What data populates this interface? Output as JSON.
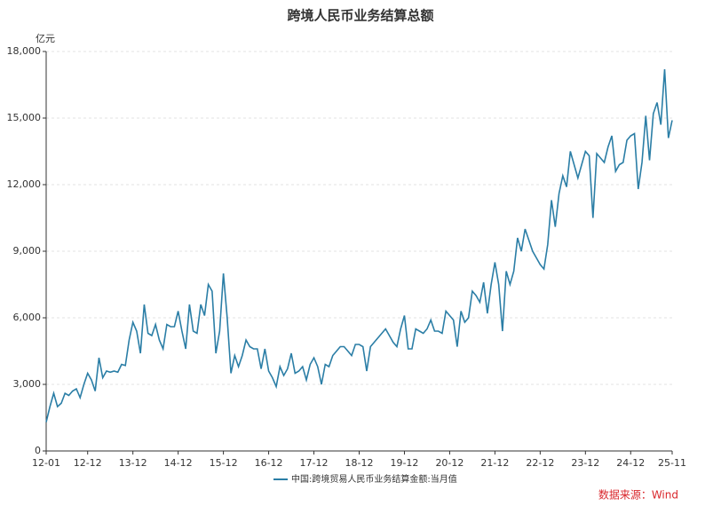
{
  "chart_data": {
    "type": "line",
    "title": "跨境人民币业务结算总额",
    "y_unit": "亿元",
    "source": "数据来源：Wind",
    "categories": [
      "12-01",
      null,
      null,
      null,
      null,
      null,
      null,
      null,
      null,
      null,
      null,
      "12-12",
      null,
      null,
      null,
      null,
      null,
      null,
      null,
      null,
      null,
      null,
      null,
      "13-12",
      null,
      null,
      null,
      null,
      null,
      null,
      null,
      null,
      null,
      null,
      null,
      "14-12",
      null,
      null,
      null,
      null,
      null,
      null,
      null,
      null,
      null,
      null,
      null,
      "15-12",
      null,
      null,
      null,
      null,
      null,
      null,
      null,
      null,
      null,
      null,
      null,
      "16-12",
      null,
      null,
      null,
      null,
      null,
      null,
      null,
      null,
      null,
      null,
      null,
      "17-12",
      null,
      null,
      null,
      null,
      null,
      null,
      null,
      null,
      null,
      null,
      null,
      "18-12",
      null,
      null,
      null,
      null,
      null,
      null,
      null,
      null,
      null,
      null,
      null,
      "19-12",
      null,
      null,
      null,
      null,
      null,
      null,
      null,
      null,
      null,
      null,
      null,
      "20-12",
      null,
      null,
      null,
      null,
      null,
      null,
      null,
      null,
      null,
      null,
      null,
      "21-12",
      null,
      null,
      null,
      null,
      null,
      null,
      null,
      null,
      null,
      null,
      null,
      "22-12",
      null,
      null,
      null,
      null,
      null,
      null,
      null,
      null,
      null,
      null,
      null,
      "23-12",
      null,
      null,
      null,
      null,
      null,
      null,
      null,
      null,
      null,
      null,
      null,
      "24-12",
      null,
      null,
      null,
      null,
      null,
      null,
      null,
      null,
      null,
      null,
      "25-11"
    ],
    "series": [
      {
        "name": "中国:跨境贸易人民币业务结算金额:当月值",
        "color": "#2b7ea6",
        "values": [
          1300,
          2000,
          2600,
          2000,
          2150,
          2600,
          2500,
          2700,
          2800,
          2400,
          3000,
          3500,
          3200,
          2700,
          4200,
          3300,
          3600,
          3550,
          3600,
          3550,
          3900,
          3850,
          5000,
          5800,
          5400,
          4400,
          6600,
          5300,
          5200,
          5700,
          5000,
          4600,
          5700,
          5600,
          5600,
          6300,
          5400,
          4600,
          6600,
          5400,
          5300,
          6600,
          6100,
          7500,
          7200,
          4400,
          5400,
          8000,
          6000,
          3500,
          4300,
          3800,
          4300,
          5000,
          4700,
          4600,
          4600,
          3700,
          4600,
          3600,
          3300,
          2900,
          3800,
          3400,
          3700,
          4400,
          3500,
          3600,
          3800,
          3200,
          3900,
          4200,
          3800,
          3000,
          3900,
          3800,
          4300,
          4500,
          4700,
          4700,
          4500,
          4300,
          4800,
          4800,
          4700,
          3600,
          4700,
          4900,
          5100,
          5300,
          5500,
          5200,
          4900,
          4700,
          5500,
          6100,
          4600,
          4600,
          5500,
          5400,
          5300,
          5500,
          5900,
          5400,
          5400,
          5300,
          6300,
          6100,
          5900,
          4700,
          6300,
          5800,
          6000,
          7200,
          7000,
          6700,
          7600,
          6200,
          7500,
          8500,
          7500,
          5400,
          8100,
          7500,
          8100,
          9600,
          9000,
          10000,
          9500,
          9000,
          8700,
          8400,
          8200,
          9300,
          11300,
          10100,
          11600,
          12400,
          11900,
          13500,
          12900,
          12300,
          12900,
          13500,
          13300,
          10500,
          13400,
          13200,
          13000,
          13700,
          14200,
          12600,
          12900,
          13000,
          14000,
          14200,
          14300,
          11800,
          13000,
          15100,
          13100,
          15200,
          15700,
          14700,
          17200,
          14100,
          14900
        ]
      }
    ],
    "ylim": [
      0,
      18000
    ],
    "yticks": [
      0,
      {
        "value": 3000,
        "label": "3,000"
      },
      {
        "value": 6000,
        "label": "6,000"
      },
      {
        "value": 9000,
        "label": "9,000"
      },
      {
        "value": 12000,
        "label": "12,000"
      },
      {
        "value": 15000,
        "label": "15,000"
      },
      {
        "value": 18000,
        "label": "18,000"
      }
    ],
    "grid": true,
    "legend": "bottom"
  }
}
